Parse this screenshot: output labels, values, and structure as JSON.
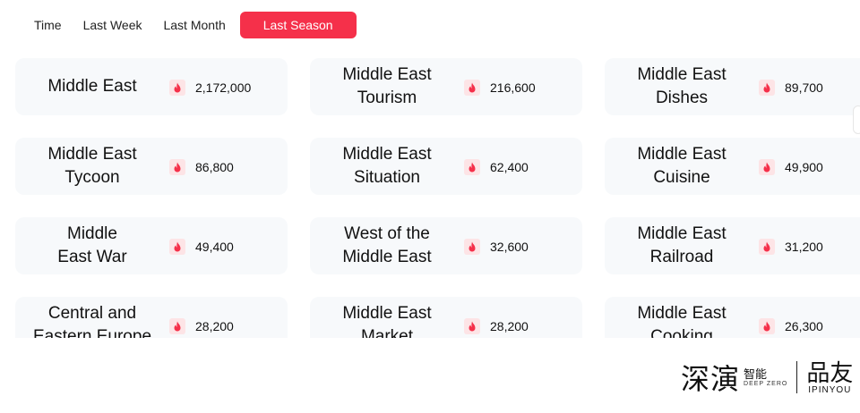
{
  "tabs": {
    "time": "Time",
    "last_week": "Last Week",
    "last_month": "Last Month",
    "last_season": "Last Season"
  },
  "accent_color": "#f5304a",
  "icon": "fire-icon",
  "cards": [
    {
      "name": "Middle East",
      "count": "2,172,000"
    },
    {
      "name": "Middle East\nTourism",
      "count": "216,600"
    },
    {
      "name": "Middle East\nDishes",
      "count": "89,700"
    },
    {
      "name": "Middle East\nTycoon",
      "count": "86,800"
    },
    {
      "name": "Middle East\nSituation",
      "count": "62,400"
    },
    {
      "name": "Middle East\nCuisine",
      "count": "49,900"
    },
    {
      "name": "Middle\nEast War",
      "count": "49,400"
    },
    {
      "name": "West of the\nMiddle East",
      "count": "32,600"
    },
    {
      "name": "Middle East\nRailroad",
      "count": "31,200"
    },
    {
      "name": "Central and\nEastern Europe",
      "count": "28,200"
    },
    {
      "name": "Middle East\nMarket",
      "count": "28,200"
    },
    {
      "name": "Middle East\nCooking",
      "count": "26,300"
    }
  ],
  "logo": {
    "left_cn": "深演",
    "left_small_cn": "智能",
    "left_small_en": "DEEP ZERO",
    "right_cn": "品友",
    "right_en": "IPINYOU"
  }
}
